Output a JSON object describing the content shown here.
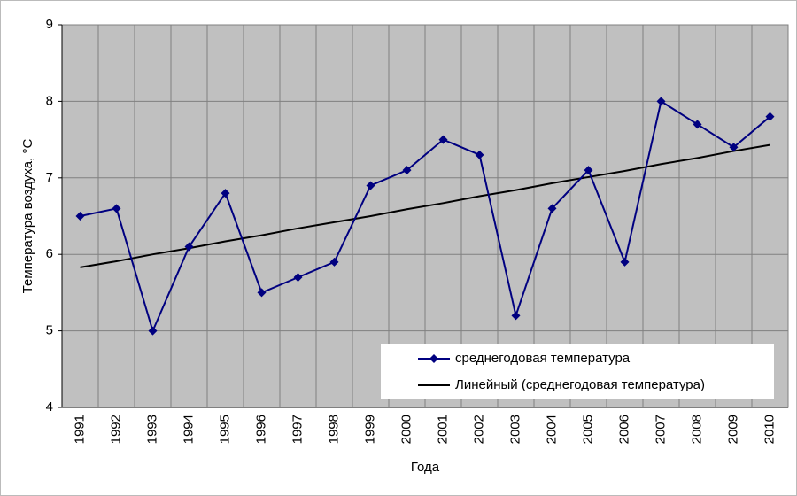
{
  "chart_data": {
    "type": "line",
    "x_label": "Года",
    "y_label": "Температура воздуха, °С",
    "categories": [
      "1991",
      "1992",
      "1993",
      "1994",
      "1995",
      "1996",
      "1997",
      "1998",
      "1999",
      "2000",
      "2001",
      "2002",
      "2003",
      "2004",
      "2005",
      "2006",
      "2007",
      "2008",
      "2009",
      "2010"
    ],
    "series": [
      {
        "name": "среднегодовая температура",
        "color": "#000080",
        "marker": "diamond",
        "values": [
          6.5,
          6.6,
          5.0,
          6.1,
          6.8,
          5.5,
          5.7,
          5.9,
          6.9,
          7.1,
          7.5,
          7.3,
          5.2,
          6.6,
          7.1,
          5.9,
          8.0,
          7.7,
          7.4,
          7.8
        ]
      },
      {
        "name": "Линейный (среднегодовая температура)",
        "color": "#000000",
        "marker": "none",
        "values": [
          5.83,
          5.91,
          6.0,
          6.08,
          6.17,
          6.25,
          6.34,
          6.42,
          6.5,
          6.59,
          6.67,
          6.76,
          6.84,
          6.93,
          7.01,
          7.09,
          7.18,
          7.26,
          7.35,
          7.43
        ]
      }
    ],
    "ylim": [
      4,
      9
    ],
    "yticks": [
      4,
      5,
      6,
      7,
      8,
      9
    ],
    "grid": true,
    "legend": "lower right",
    "plot_background": "#c0c0c0"
  }
}
